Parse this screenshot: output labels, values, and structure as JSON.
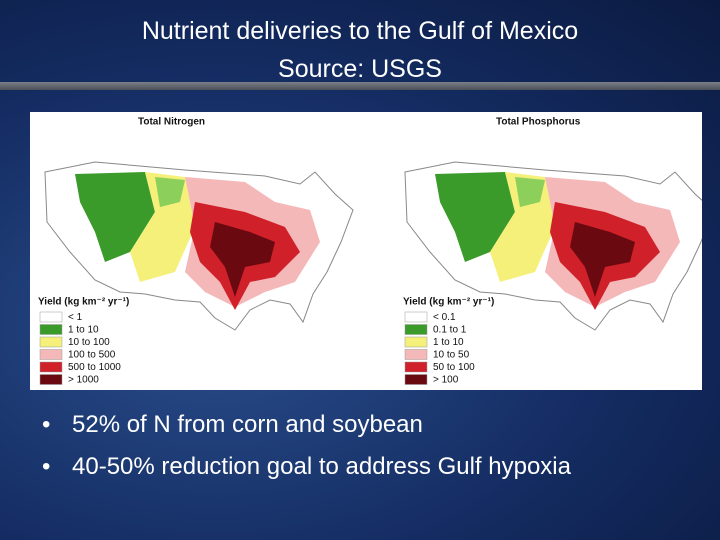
{
  "header": {
    "title": "Nutrient deliveries to the Gulf of Mexico",
    "subtitle": "Source: USGS"
  },
  "maps": [
    {
      "title": "Total Nitrogen",
      "legend_title": "Yield (kg km⁻² yr⁻¹)",
      "legend": [
        "< 1",
        "1 to 10",
        "10 to 100",
        "100 to 500",
        "500 to 1000",
        "> 1000"
      ]
    },
    {
      "title": "Total Phosphorus",
      "legend_title": "Yield (kg km⁻² yr⁻¹)",
      "legend": [
        "< 0.1",
        "0.1 to 1",
        "1 to 10",
        "10 to 50",
        "50 to 100",
        "> 100"
      ]
    }
  ],
  "bullets": [
    "52% of N from corn and soybean",
    "40-50% reduction goal to address Gulf hypoxia"
  ]
}
